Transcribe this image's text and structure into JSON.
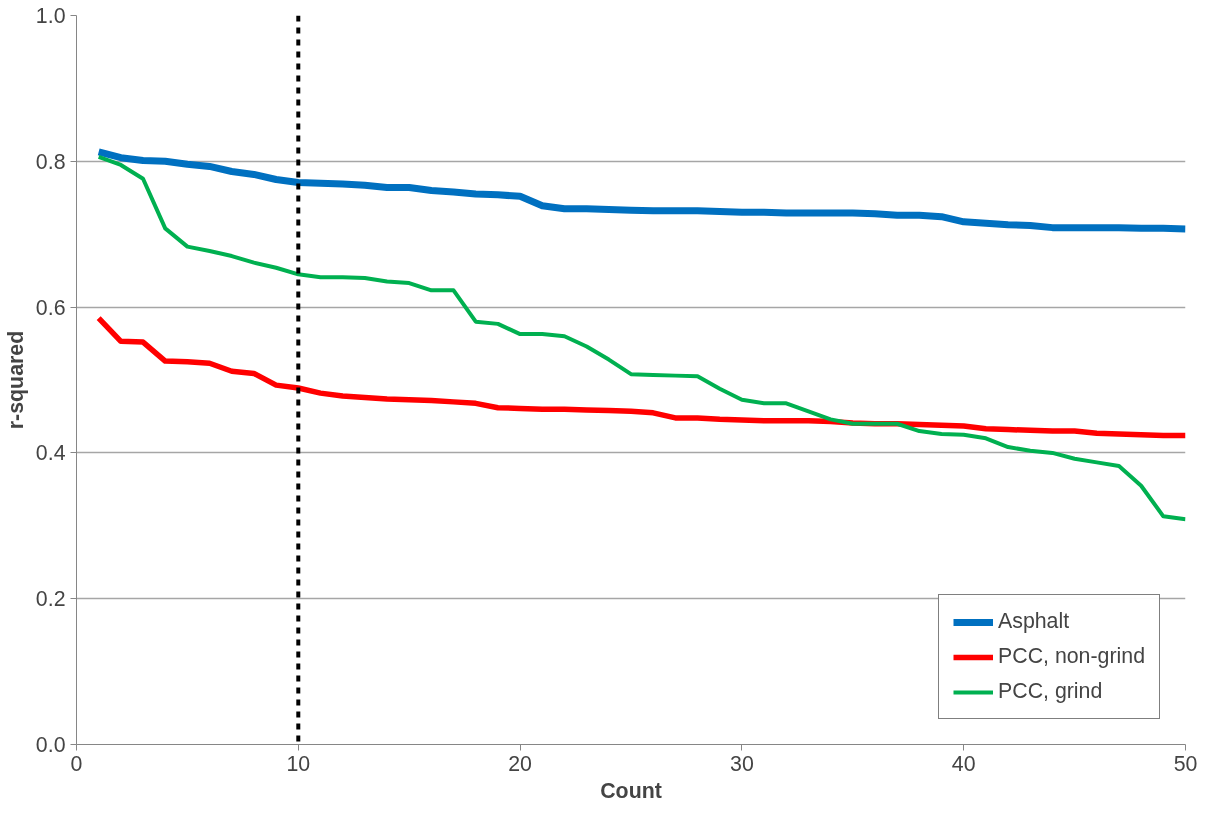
{
  "chart_data": {
    "type": "line",
    "xlabel": "Count",
    "ylabel": "r-squared",
    "x": [
      1,
      2,
      3,
      4,
      5,
      6,
      7,
      8,
      9,
      10,
      11,
      12,
      13,
      14,
      15,
      16,
      17,
      18,
      19,
      20,
      21,
      22,
      23,
      24,
      25,
      26,
      27,
      28,
      29,
      30,
      31,
      32,
      33,
      34,
      35,
      36,
      37,
      38,
      39,
      40,
      41,
      42,
      43,
      44,
      45,
      46,
      47,
      48,
      49,
      50
    ],
    "series": [
      {
        "name": "Asphalt",
        "color": "#0070c0",
        "values": [
          0.813,
          0.805,
          0.801,
          0.8,
          0.796,
          0.793,
          0.786,
          0.782,
          0.775,
          0.771,
          0.77,
          0.769,
          0.767,
          0.764,
          0.764,
          0.76,
          0.758,
          0.755,
          0.754,
          0.752,
          0.739,
          0.735,
          0.735,
          0.734,
          0.733,
          0.732,
          0.732,
          0.732,
          0.731,
          0.73,
          0.73,
          0.729,
          0.729,
          0.729,
          0.729,
          0.728,
          0.726,
          0.726,
          0.724,
          0.717,
          0.715,
          0.713,
          0.712,
          0.709,
          0.709,
          0.709,
          0.709,
          0.708,
          0.708,
          0.707
        ]
      },
      {
        "name": "PCC, non-grind",
        "color": "#ff0000",
        "values": [
          0.585,
          0.553,
          0.552,
          0.526,
          0.525,
          0.523,
          0.512,
          0.509,
          0.493,
          0.489,
          0.482,
          0.478,
          0.476,
          0.474,
          0.473,
          0.472,
          0.47,
          0.468,
          0.462,
          0.461,
          0.46,
          0.46,
          0.459,
          0.458,
          0.457,
          0.455,
          0.448,
          0.448,
          0.446,
          0.445,
          0.444,
          0.444,
          0.444,
          0.443,
          0.441,
          0.44,
          0.44,
          0.439,
          0.438,
          0.437,
          0.433,
          0.432,
          0.431,
          0.43,
          0.43,
          0.427,
          0.426,
          0.425,
          0.424,
          0.424
        ]
      },
      {
        "name": "PCC, grind",
        "color": "#00b050",
        "values": [
          0.806,
          0.795,
          0.776,
          0.708,
          0.683,
          0.677,
          0.67,
          0.661,
          0.654,
          0.645,
          0.641,
          0.641,
          0.64,
          0.635,
          0.633,
          0.623,
          0.623,
          0.58,
          0.577,
          0.563,
          0.563,
          0.56,
          0.546,
          0.528,
          0.508,
          0.507,
          0.506,
          0.505,
          0.488,
          0.473,
          0.468,
          0.468,
          0.457,
          0.446,
          0.44,
          0.44,
          0.44,
          0.43,
          0.426,
          0.425,
          0.42,
          0.408,
          0.403,
          0.4,
          0.392,
          0.387,
          0.382,
          0.355,
          0.313,
          0.309
        ]
      }
    ],
    "xlim": [
      0,
      50
    ],
    "xticks": [
      0,
      10,
      20,
      30,
      40,
      50
    ],
    "ylim": [
      0,
      1
    ],
    "yticks": [
      {
        "value": 0,
        "label": "0.0"
      },
      {
        "value": 0.2,
        "label": "0.2"
      },
      {
        "value": 0.4,
        "label": "0.4"
      },
      {
        "value": 0.6,
        "label": "0.6"
      },
      {
        "value": 0.8,
        "label": "0.8"
      },
      {
        "value": 1,
        "label": "1.0"
      }
    ],
    "ref_lines": [
      {
        "axis": "x",
        "value": 10,
        "color": "#000000",
        "line_style": "dashed"
      }
    ],
    "grid": "y",
    "legend": "bottom right",
    "marker": "none",
    "line_style": "solid"
  }
}
